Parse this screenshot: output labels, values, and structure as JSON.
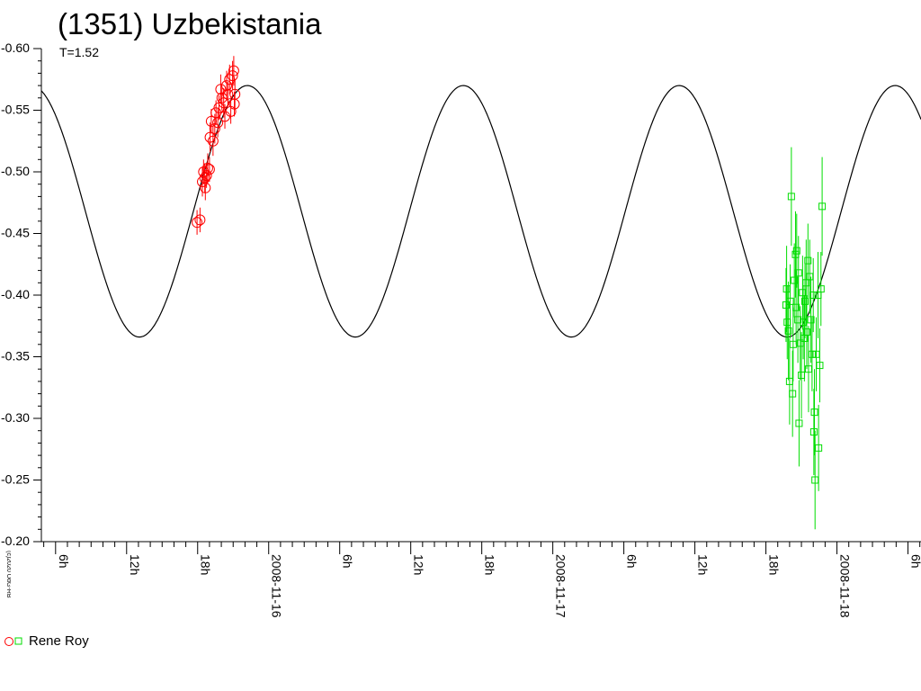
{
  "chart_data": {
    "type": "scatter",
    "title": "(1351) Uzbekistania",
    "subtitle": "T=1.52",
    "xlabel": "",
    "ylabel": "",
    "x_unit": "hours",
    "xlim": [
      4.8,
      79.1
    ],
    "ylim": [
      -0.6,
      -0.2
    ],
    "y_ticks": [
      "-0.60",
      "-0.55",
      "-0.50",
      "-0.45",
      "-0.40",
      "-0.35",
      "-0.30",
      "-0.25",
      "-0.20"
    ],
    "x_tick_labels": [
      {
        "x": 6,
        "label": "6h"
      },
      {
        "x": 12,
        "label": "12h"
      },
      {
        "x": 18,
        "label": "18h"
      },
      {
        "x": 24,
        "label": "2008-11-16"
      },
      {
        "x": 30,
        "label": "6h"
      },
      {
        "x": 36,
        "label": "12h"
      },
      {
        "x": 42,
        "label": "18h"
      },
      {
        "x": 48,
        "label": "2008-11-17"
      },
      {
        "x": 54,
        "label": "6h"
      },
      {
        "x": 60,
        "label": "12h"
      },
      {
        "x": 66,
        "label": "18h"
      },
      {
        "x": 72,
        "label": "2008-11-18"
      },
      {
        "x": 78,
        "label": "6h"
      }
    ],
    "fit_curve": {
      "period_hours": 18.24,
      "amplitude": 0.102,
      "mean": -0.468,
      "peak_x": 22.2
    },
    "copyright": "(c)2020 OdG-RB",
    "grid": false,
    "legend_position": "bottom-left",
    "series": [
      {
        "name": "Rene Roy",
        "marker": "circle",
        "color": "#ff0000",
        "points": [
          {
            "x": 17.95,
            "y": -0.459,
            "err": 0.01
          },
          {
            "x": 18.2,
            "y": -0.461,
            "err": 0.01
          },
          {
            "x": 18.4,
            "y": -0.492,
            "err": 0.012
          },
          {
            "x": 18.5,
            "y": -0.5,
            "err": 0.01
          },
          {
            "x": 18.6,
            "y": -0.495,
            "err": 0.012
          },
          {
            "x": 18.65,
            "y": -0.487,
            "err": 0.01
          },
          {
            "x": 18.75,
            "y": -0.497,
            "err": 0.01
          },
          {
            "x": 18.85,
            "y": -0.503,
            "err": 0.012
          },
          {
            "x": 19.0,
            "y": -0.502,
            "err": 0.01
          },
          {
            "x": 19.05,
            "y": -0.528,
            "err": 0.012
          },
          {
            "x": 19.15,
            "y": -0.541,
            "err": 0.01
          },
          {
            "x": 19.3,
            "y": -0.525,
            "err": 0.012
          },
          {
            "x": 19.45,
            "y": -0.535,
            "err": 0.012
          },
          {
            "x": 19.55,
            "y": -0.548,
            "err": 0.01
          },
          {
            "x": 19.7,
            "y": -0.54,
            "err": 0.012
          },
          {
            "x": 19.8,
            "y": -0.552,
            "err": 0.01
          },
          {
            "x": 19.95,
            "y": -0.567,
            "err": 0.012
          },
          {
            "x": 20.05,
            "y": -0.56,
            "err": 0.01
          },
          {
            "x": 20.2,
            "y": -0.556,
            "err": 0.012
          },
          {
            "x": 20.3,
            "y": -0.545,
            "err": 0.01
          },
          {
            "x": 20.45,
            "y": -0.57,
            "err": 0.012
          },
          {
            "x": 20.55,
            "y": -0.563,
            "err": 0.01
          },
          {
            "x": 20.7,
            "y": -0.575,
            "err": 0.012
          },
          {
            "x": 20.8,
            "y": -0.549,
            "err": 0.01
          },
          {
            "x": 20.95,
            "y": -0.578,
            "err": 0.012
          },
          {
            "x": 21.05,
            "y": -0.582,
            "err": 0.012
          },
          {
            "x": 21.1,
            "y": -0.555,
            "err": 0.01
          },
          {
            "x": 21.15,
            "y": -0.563,
            "err": 0.012
          }
        ]
      },
      {
        "name": "",
        "marker": "square",
        "color": "#00dd00",
        "points": [
          {
            "x": 67.7,
            "y": -0.392,
            "err": 0.03
          },
          {
            "x": 67.75,
            "y": -0.405,
            "err": 0.035
          },
          {
            "x": 67.8,
            "y": -0.378,
            "err": 0.03
          },
          {
            "x": 67.9,
            "y": -0.371,
            "err": 0.04
          },
          {
            "x": 68.0,
            "y": -0.33,
            "err": 0.035
          },
          {
            "x": 68.05,
            "y": -0.395,
            "err": 0.03
          },
          {
            "x": 68.15,
            "y": -0.48,
            "err": 0.04
          },
          {
            "x": 68.25,
            "y": -0.32,
            "err": 0.035
          },
          {
            "x": 68.3,
            "y": -0.36,
            "err": 0.03
          },
          {
            "x": 68.4,
            "y": -0.412,
            "err": 0.03
          },
          {
            "x": 68.5,
            "y": -0.433,
            "err": 0.035
          },
          {
            "x": 68.55,
            "y": -0.39,
            "err": 0.03
          },
          {
            "x": 68.6,
            "y": -0.436,
            "err": 0.03
          },
          {
            "x": 68.7,
            "y": -0.38,
            "err": 0.035
          },
          {
            "x": 68.75,
            "y": -0.418,
            "err": 0.03
          },
          {
            "x": 68.8,
            "y": -0.296,
            "err": 0.035
          },
          {
            "x": 68.9,
            "y": -0.361,
            "err": 0.03
          },
          {
            "x": 69.0,
            "y": -0.335,
            "err": 0.035
          },
          {
            "x": 69.1,
            "y": -0.402,
            "err": 0.03
          },
          {
            "x": 69.15,
            "y": -0.378,
            "err": 0.03
          },
          {
            "x": 69.25,
            "y": -0.365,
            "err": 0.035
          },
          {
            "x": 69.3,
            "y": -0.395,
            "err": 0.03
          },
          {
            "x": 69.4,
            "y": -0.41,
            "err": 0.035
          },
          {
            "x": 69.45,
            "y": -0.37,
            "err": 0.03
          },
          {
            "x": 69.55,
            "y": -0.428,
            "err": 0.03
          },
          {
            "x": 69.6,
            "y": -0.34,
            "err": 0.035
          },
          {
            "x": 69.7,
            "y": -0.415,
            "err": 0.03
          },
          {
            "x": 69.8,
            "y": -0.38,
            "err": 0.035
          },
          {
            "x": 69.9,
            "y": -0.352,
            "err": 0.03
          },
          {
            "x": 70.0,
            "y": -0.4,
            "err": 0.03
          },
          {
            "x": 70.05,
            "y": -0.289,
            "err": 0.035
          },
          {
            "x": 70.1,
            "y": -0.305,
            "err": 0.035
          },
          {
            "x": 70.15,
            "y": -0.25,
            "err": 0.04
          },
          {
            "x": 70.25,
            "y": -0.352,
            "err": 0.03
          },
          {
            "x": 70.4,
            "y": -0.4,
            "err": 0.035
          },
          {
            "x": 70.45,
            "y": -0.276,
            "err": 0.035
          },
          {
            "x": 70.55,
            "y": -0.343,
            "err": 0.03
          },
          {
            "x": 70.65,
            "y": -0.405,
            "err": 0.03
          },
          {
            "x": 70.75,
            "y": -0.472,
            "err": 0.04
          }
        ]
      }
    ]
  }
}
